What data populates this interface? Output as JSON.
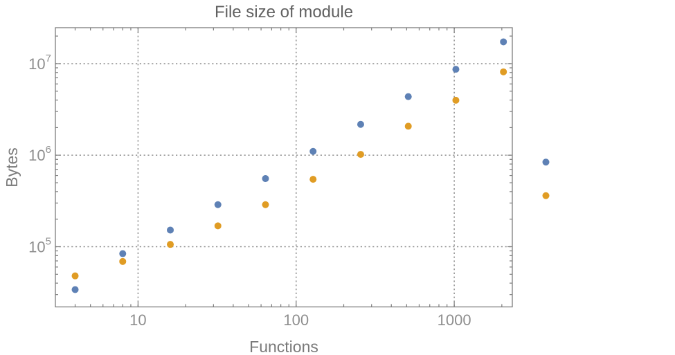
{
  "page": {
    "background": "#ffffff"
  },
  "chart_data": {
    "type": "scatter",
    "title": "File size of module",
    "xlabel": "Functions",
    "ylabel": "Bytes",
    "xscale": "log",
    "yscale": "log",
    "xlim": [
      3,
      2330
    ],
    "ylim": [
      22000,
      24700000
    ],
    "grid": {
      "style": "dotted",
      "on": true,
      "x_values": [
        10,
        100,
        1000
      ],
      "y_values": [
        100000,
        1000000,
        10000000
      ]
    },
    "legend": "none",
    "points_clipped_to_frame": false,
    "x": [
      4,
      8,
      16,
      32,
      64,
      128,
      256,
      512,
      1024,
      2048,
      3800
    ],
    "series": [
      {
        "name": "blue",
        "color": "#5E81B5",
        "values": [
          34000,
          84000,
          152000,
          288000,
          555000,
          1100000,
          2170000,
          4360000,
          8670000,
          17300000,
          840000
        ]
      },
      {
        "name": "orange",
        "color": "#E09C24",
        "values": [
          48000,
          69000,
          106000,
          169000,
          288000,
          545000,
          1020000,
          2070000,
          3980000,
          8130000,
          361000
        ]
      }
    ],
    "x_ticks": [
      10,
      100,
      1000
    ],
    "x_tick_labels": [
      "10",
      "100",
      "1000"
    ],
    "y_ticks": [
      100000,
      1000000,
      10000000
    ],
    "y_tick_labels": [
      "10^5",
      "10^6",
      "10^7"
    ]
  },
  "style_colors": {
    "title": "#616161",
    "axis_label": "#7a7a7a",
    "tick_label": "#8f8f8f",
    "frame": "#7c7c7c",
    "gridline": "#8f8f8f"
  }
}
